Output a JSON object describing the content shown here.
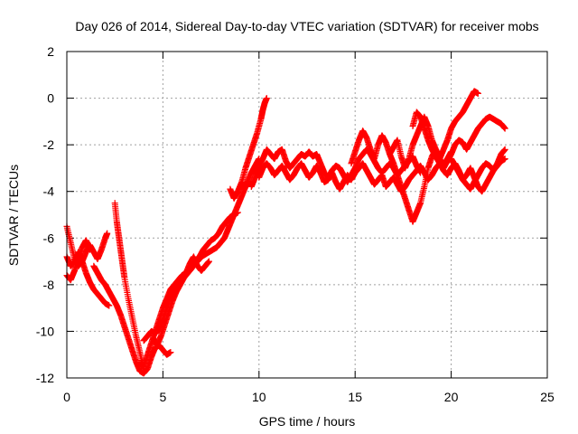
{
  "chart_data": {
    "type": "scatter",
    "title": "Day 026 of 2014, Sidereal Day-to-day VTEC variation (SDTVAR) for receiver mobs",
    "xlabel": "GPS time / hours",
    "ylabel": "SDTVAR / TECUs",
    "xlim": [
      0,
      25
    ],
    "ylim": [
      -12,
      2
    ],
    "xticks": [
      0,
      5,
      10,
      15,
      20,
      25
    ],
    "yticks": [
      -12,
      -10,
      -8,
      -6,
      -4,
      -2,
      0,
      2
    ],
    "grid": true,
    "marker": "+",
    "series": [
      {
        "name": "SDTVAR",
        "color": "#ff0000",
        "segments": [
          {
            "x": [
              0.0,
              0.2,
              0.4,
              0.6,
              0.8,
              1.0,
              1.2,
              1.4,
              1.6,
              1.8,
              2.0,
              2.1
            ],
            "y": [
              -5.5,
              -6.2,
              -6.9,
              -7.2,
              -7.0,
              -6.6,
              -6.3,
              -6.6,
              -6.9,
              -6.5,
              -6.0,
              -5.8
            ]
          },
          {
            "x": [
              0.0,
              0.2,
              0.4,
              0.6,
              0.8,
              1.0,
              1.2,
              1.4,
              1.6,
              1.8,
              2.0,
              2.2
            ],
            "y": [
              -6.8,
              -7.2,
              -7.0,
              -6.6,
              -7.0,
              -7.5,
              -7.9,
              -8.2,
              -8.4,
              -8.6,
              -8.8,
              -8.9
            ]
          },
          {
            "x": [
              0.0,
              0.2,
              0.4,
              0.6,
              0.8,
              1.0,
              1.2
            ],
            "y": [
              -7.6,
              -7.8,
              -7.4,
              -6.9,
              -6.4,
              -6.1,
              -6.5
            ]
          },
          {
            "x": [
              1.4,
              1.6,
              1.8,
              2.0,
              2.2,
              2.4,
              2.6,
              2.8,
              3.0,
              3.2,
              3.4,
              3.6,
              3.8,
              4.0,
              4.2,
              4.4,
              4.6,
              4.8,
              5.0,
              5.2,
              5.4
            ],
            "y": [
              -7.2,
              -7.5,
              -7.8,
              -8.0,
              -8.3,
              -8.6,
              -8.9,
              -9.3,
              -9.8,
              -10.3,
              -10.8,
              -11.3,
              -11.7,
              -11.8,
              -11.6,
              -11.1,
              -10.7,
              -10.6,
              -10.8,
              -11.0,
              -10.9
            ]
          },
          {
            "x": [
              2.5,
              2.6,
              2.7,
              2.8,
              2.9,
              3.0,
              3.2,
              3.4,
              3.6,
              3.8,
              4.0
            ],
            "y": [
              -4.5,
              -5.3,
              -5.9,
              -6.5,
              -7.1,
              -7.7,
              -8.6,
              -9.4,
              -10.2,
              -10.9,
              -11.6
            ]
          },
          {
            "x": [
              3.8,
              4.0,
              4.2,
              4.4,
              4.6,
              4.8,
              5.0,
              5.2,
              5.4,
              5.6,
              5.8,
              6.0,
              6.2,
              6.4,
              6.6,
              6.8,
              7.0,
              7.2,
              7.4,
              7.6,
              7.8,
              8.0,
              8.2,
              8.4,
              8.6,
              8.8,
              9.0,
              9.2,
              9.4,
              9.6,
              9.8,
              10.0
            ],
            "y": [
              -11.4,
              -11.5,
              -11.0,
              -10.5,
              -10.0,
              -9.5,
              -9.0,
              -8.6,
              -8.2,
              -8.0,
              -7.8,
              -7.6,
              -7.5,
              -7.3,
              -7.1,
              -7.0,
              -6.8,
              -6.7,
              -6.6,
              -6.5,
              -6.4,
              -6.2,
              -6.0,
              -5.6,
              -5.2,
              -4.8,
              -4.4,
              -4.0,
              -3.6,
              -3.2,
              -2.9,
              -2.6
            ]
          },
          {
            "x": [
              4.0,
              4.2,
              4.4,
              4.6,
              4.8,
              5.0,
              5.2,
              5.4,
              5.6,
              5.8,
              6.0,
              6.2,
              6.4,
              6.6,
              6.8,
              7.0,
              7.2,
              7.4
            ],
            "y": [
              -10.4,
              -10.2,
              -10.0,
              -10.1,
              -9.9,
              -9.5,
              -9.0,
              -8.5,
              -8.2,
              -8.0,
              -7.8,
              -7.5,
              -7.1,
              -6.8,
              -7.2,
              -7.4,
              -7.2,
              -7.0
            ]
          },
          {
            "x": [
              4.5,
              4.7,
              4.9,
              5.1,
              5.3,
              5.5,
              5.7,
              5.9,
              6.1,
              6.3,
              6.5,
              6.7,
              6.9,
              7.1,
              7.3,
              7.5,
              7.7,
              7.9,
              8.1,
              8.3,
              8.5,
              8.7,
              8.9
            ],
            "y": [
              -10.3,
              -10.6,
              -10.2,
              -9.7,
              -9.2,
              -8.7,
              -8.3,
              -8.0,
              -7.7,
              -7.5,
              -7.3,
              -7.0,
              -6.8,
              -6.5,
              -6.3,
              -6.1,
              -6.0,
              -5.8,
              -5.5,
              -5.3,
              -5.1,
              -5.0,
              -4.9
            ]
          },
          {
            "x": [
              8.5,
              8.7,
              8.9,
              9.1,
              9.3,
              9.5,
              9.7,
              9.9,
              10.1,
              10.2,
              10.3,
              10.4
            ],
            "y": [
              -3.9,
              -4.3,
              -4.0,
              -3.6,
              -3.0,
              -2.5,
              -2.0,
              -1.5,
              -0.9,
              -0.5,
              -0.2,
              0.0
            ]
          },
          {
            "x": [
              9.6,
              9.8,
              10.0,
              10.2,
              10.4,
              10.6,
              10.8,
              11.0,
              11.2,
              11.4,
              11.6,
              11.8,
              12.0,
              12.2,
              12.4,
              12.6,
              12.8,
              13.0,
              13.2,
              13.4,
              13.6,
              13.8,
              14.0,
              14.2,
              14.4,
              14.6,
              14.8,
              15.0,
              15.2,
              15.4,
              15.6,
              15.8,
              16.0,
              16.2,
              16.4,
              16.6,
              16.8,
              17.0,
              17.2,
              17.4,
              17.6,
              17.8,
              18.0,
              18.2,
              18.4
            ],
            "y": [
              -3.8,
              -3.4,
              -3.0,
              -2.6,
              -2.2,
              -2.4,
              -2.6,
              -2.3,
              -2.2,
              -2.7,
              -3.0,
              -2.8,
              -2.6,
              -2.4,
              -2.5,
              -2.3,
              -2.5,
              -2.4,
              -2.8,
              -3.2,
              -3.4,
              -3.1,
              -2.9,
              -3.0,
              -3.3,
              -3.6,
              -3.3,
              -3.0,
              -2.6,
              -2.4,
              -2.2,
              -2.4,
              -2.7,
              -3.0,
              -3.2,
              -3.0,
              -2.8,
              -3.0,
              -3.3,
              -3.1,
              -2.9,
              -2.7,
              -2.5,
              -2.9,
              -3.2
            ]
          },
          {
            "x": [
              10.0,
              10.2,
              10.4,
              10.6,
              10.8,
              11.0,
              11.2,
              11.4,
              11.6,
              11.8,
              12.0,
              12.2,
              12.4,
              12.6,
              12.8,
              13.0,
              13.2,
              13.4,
              13.6,
              13.8,
              14.0,
              14.2,
              14.4,
              14.6,
              14.8,
              15.0,
              15.2,
              15.4,
              15.6,
              15.8,
              16.0,
              16.2,
              16.4,
              16.6,
              16.8,
              17.0,
              17.2,
              17.4,
              17.6,
              17.8,
              18.0,
              18.2,
              18.4,
              18.6,
              18.8,
              19.0,
              19.2,
              19.4,
              19.6,
              19.8,
              20.0,
              20.2,
              20.4,
              20.6,
              20.8,
              21.0,
              21.2,
              21.4,
              21.6,
              21.8,
              22.0,
              22.2,
              22.4,
              22.6,
              22.8
            ],
            "y": [
              -3.4,
              -3.0,
              -2.8,
              -3.0,
              -3.3,
              -3.1,
              -2.9,
              -3.2,
              -3.5,
              -3.3,
              -3.0,
              -2.8,
              -3.1,
              -3.4,
              -3.2,
              -2.9,
              -3.2,
              -3.6,
              -3.5,
              -3.2,
              -3.6,
              -3.9,
              -3.6,
              -3.3,
              -3.5,
              -3.2,
              -3.0,
              -2.8,
              -3.1,
              -3.4,
              -3.7,
              -3.5,
              -3.3,
              -3.8,
              -3.6,
              -3.4,
              -3.7,
              -4.0,
              -3.8,
              -3.5,
              -3.3,
              -3.1,
              -2.9,
              -3.2,
              -3.5,
              -3.3,
              -3.0,
              -2.8,
              -3.1,
              -3.3,
              -3.0,
              -2.8,
              -3.1,
              -3.5,
              -3.7,
              -3.9,
              -3.6,
              -3.3,
              -3.0,
              -2.8,
              -2.9,
              -3.1,
              -2.8,
              -2.4,
              -2.2
            ]
          },
          {
            "x": [
              14.8,
              15.0,
              15.2,
              15.4,
              15.6,
              15.8,
              16.0,
              16.2,
              16.4,
              16.6,
              16.8,
              17.0,
              17.2,
              17.4,
              17.6,
              17.8,
              18.0,
              18.2,
              18.4,
              18.6,
              18.8,
              19.0,
              19.2,
              19.4,
              19.6,
              19.8,
              20.0,
              20.2,
              20.4,
              20.6,
              20.8,
              21.0,
              21.2,
              21.4
            ],
            "y": [
              -2.8,
              -2.3,
              -1.8,
              -1.4,
              -1.7,
              -2.2,
              -2.6,
              -2.0,
              -1.6,
              -1.9,
              -2.4,
              -2.1,
              -1.8,
              -2.5,
              -3.0,
              -2.6,
              -2.0,
              -1.6,
              -1.2,
              -0.8,
              -1.2,
              -1.8,
              -2.2,
              -2.6,
              -2.2,
              -1.8,
              -1.3,
              -1.0,
              -0.8,
              -0.6,
              -0.3,
              0.0,
              0.3,
              0.2
            ]
          },
          {
            "x": [
              16.8,
              17.0,
              17.2,
              17.4,
              17.6,
              17.8,
              18.0,
              18.2,
              18.4,
              18.6,
              18.8,
              19.0,
              19.2,
              19.4,
              19.6,
              19.8,
              20.0
            ],
            "y": [
              -2.4,
              -2.8,
              -3.3,
              -3.8,
              -4.3,
              -4.8,
              -5.3,
              -4.9,
              -4.5,
              -3.8,
              -3.0,
              -2.5,
              -2.2,
              -2.6,
              -2.9,
              -2.6,
              -2.3
            ]
          },
          {
            "x": [
              18.0,
              18.2,
              18.4,
              18.6,
              18.8,
              19.0,
              19.2,
              19.4,
              19.6,
              19.8,
              20.0,
              20.2,
              20.4,
              20.6,
              20.8,
              21.0,
              21.2,
              21.4,
              21.6,
              21.8,
              22.0,
              22.2,
              22.4,
              22.6,
              22.8
            ],
            "y": [
              -1.2,
              -0.6,
              -0.8,
              -1.3,
              -1.8,
              -2.2,
              -2.5,
              -2.8,
              -3.0,
              -2.7,
              -2.4,
              -2.0,
              -1.8,
              -1.9,
              -2.2,
              -1.9,
              -1.6,
              -1.3,
              -1.1,
              -0.9,
              -0.8,
              -0.9,
              -1.0,
              -1.1,
              -1.3
            ]
          },
          {
            "x": [
              20.0,
              20.2,
              20.4,
              20.6,
              20.8,
              21.0,
              21.2,
              21.4,
              21.6,
              21.8,
              22.0,
              22.2,
              22.4,
              22.6,
              22.8
            ],
            "y": [
              -2.6,
              -2.9,
              -3.2,
              -3.5,
              -3.3,
              -3.0,
              -3.4,
              -3.8,
              -4.0,
              -3.7,
              -3.4,
              -3.1,
              -2.9,
              -2.7,
              -2.6
            ]
          }
        ]
      }
    ]
  }
}
